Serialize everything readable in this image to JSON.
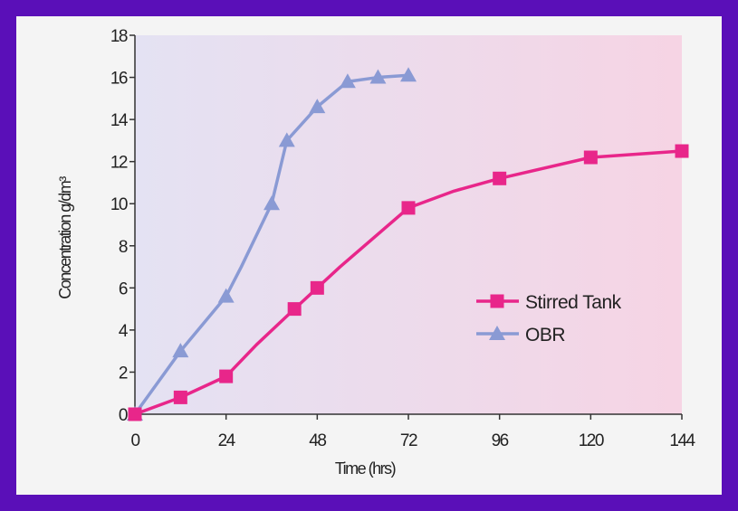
{
  "chart_data": {
    "type": "line",
    "xlabel": "Time (hrs)",
    "ylabel": "Concentration g/dm³",
    "xlim": [
      0,
      144
    ],
    "ylim": [
      0,
      18
    ],
    "xticks": [
      0,
      24,
      48,
      72,
      96,
      120,
      144
    ],
    "xtick_labels": [
      "0",
      "24",
      "48",
      "72",
      "96",
      "120",
      "144"
    ],
    "yticks": [
      0,
      2,
      4,
      6,
      8,
      10,
      12,
      14,
      16,
      18
    ],
    "ytick_labels": [
      "0",
      "2",
      "4",
      "6",
      "8",
      "10",
      "12",
      "14",
      "16",
      "18"
    ],
    "grid": false,
    "legend_position": "center-right",
    "background_gradient": [
      "#e4e2f3",
      "#f6d4e4"
    ],
    "series": [
      {
        "name": "Stirred Tank",
        "color": "#e8268a",
        "marker": "square",
        "x": [
          0,
          12,
          24,
          32,
          42,
          48,
          54,
          72,
          84,
          96,
          120,
          144
        ],
        "y": [
          0,
          0.8,
          1.8,
          3.3,
          5,
          6,
          7,
          9.8,
          10.6,
          11.2,
          12.2,
          12.5
        ],
        "marked": [
          true,
          true,
          true,
          false,
          true,
          true,
          false,
          true,
          false,
          true,
          true,
          true
        ]
      },
      {
        "name": "OBR",
        "color": "#8a9ad4",
        "marker": "triangle",
        "x": [
          0,
          12,
          24,
          28,
          36,
          40,
          48,
          56,
          64,
          72
        ],
        "y": [
          0,
          3,
          5.6,
          7,
          10,
          13,
          14.6,
          15.8,
          16,
          16.1
        ],
        "marked": [
          true,
          true,
          true,
          false,
          true,
          true,
          true,
          true,
          true,
          true
        ]
      }
    ]
  }
}
